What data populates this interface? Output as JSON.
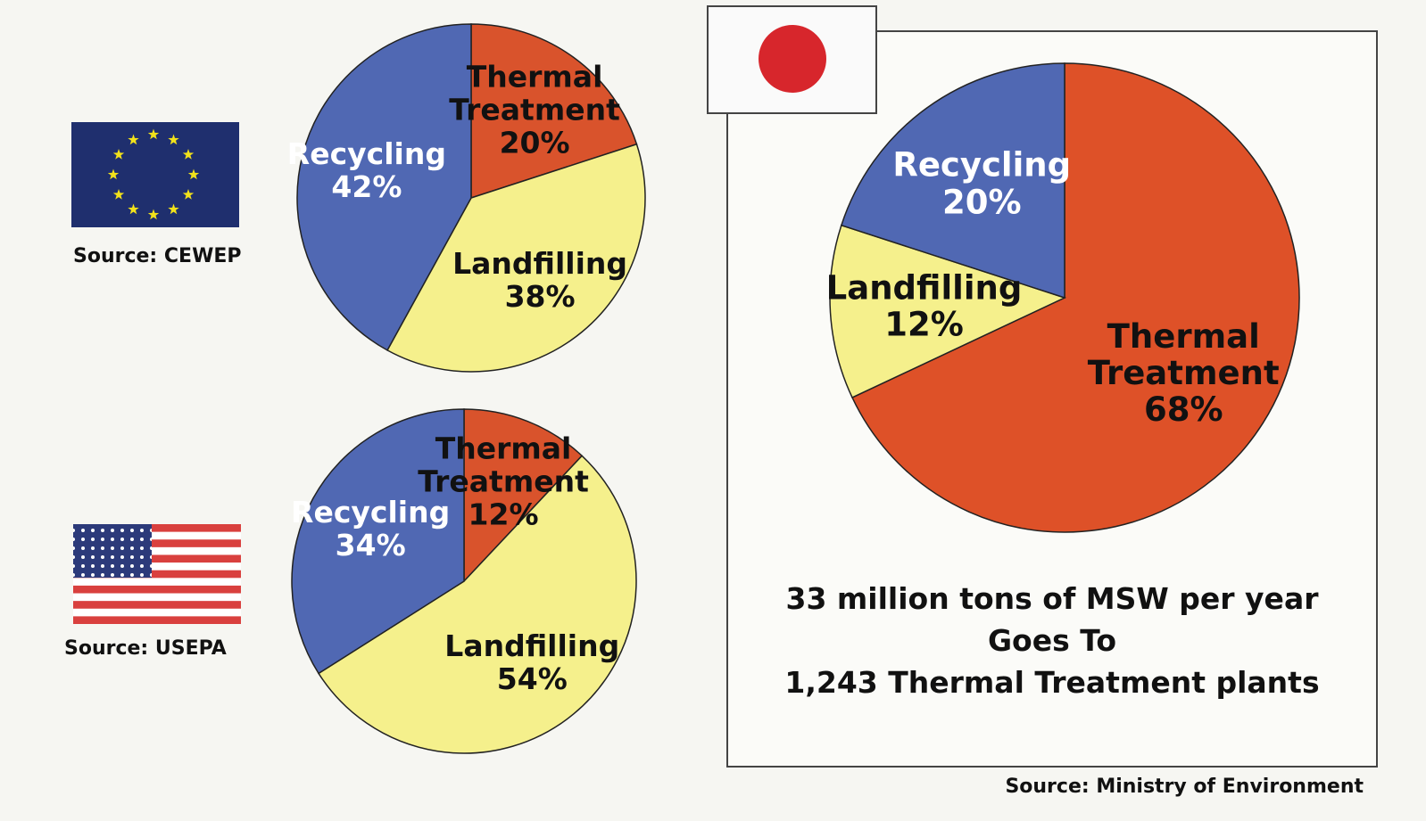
{
  "chart_data": [
    {
      "type": "pie",
      "source": "Source: CEWEP",
      "categories": [
        "Thermal Treatment",
        "Landfilling",
        "Recycling"
      ],
      "values": [
        20,
        38,
        42
      ],
      "value_labels": [
        "20%",
        "38%",
        "42%"
      ],
      "colors": [
        "#d9532c",
        "#f5f08c",
        "#5068b3"
      ]
    },
    {
      "type": "pie",
      "source": "Source: USEPA",
      "categories": [
        "Thermal Treatment",
        "Landfilling",
        "Recycling"
      ],
      "values": [
        12,
        54,
        34
      ],
      "value_labels": [
        "12%",
        "54%",
        "34%"
      ],
      "colors": [
        "#d9532c",
        "#f5f08c",
        "#5068b3"
      ]
    },
    {
      "type": "pie",
      "source": "Source: Ministry of Environment",
      "categories": [
        "Thermal Treatment",
        "Landfilling",
        "Recycling"
      ],
      "values": [
        68,
        12,
        20
      ],
      "value_labels": [
        "68%",
        "12%",
        "20%"
      ],
      "colors": [
        "#de5128",
        "#f5f08c",
        "#5068b3"
      ],
      "annotations": [
        "33 million tons of MSW per year",
        "Goes To",
        "1,243 Thermal Treatment plants"
      ]
    }
  ]
}
